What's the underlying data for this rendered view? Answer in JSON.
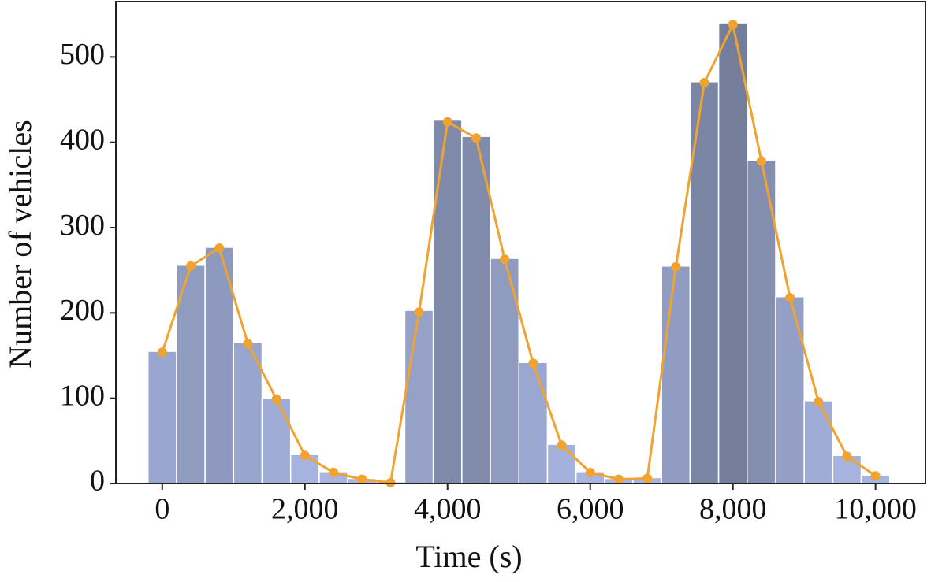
{
  "chart_data": {
    "type": "histogram",
    "x_label": "Time (s)",
    "y_label": "Number of vehicles",
    "bins": [
      -200,
      200,
      600,
      1000,
      1400,
      1800,
      2200,
      2600,
      3000,
      3400,
      3800,
      4200,
      4600,
      5000,
      5400,
      5800,
      6200,
      6600,
      7000,
      7400,
      7800,
      8200,
      8600,
      9000,
      9400,
      9800,
      10200
    ],
    "values": [
      155,
      256,
      277,
      165,
      100,
      34,
      14,
      6,
      2,
      203,
      426,
      407,
      264,
      142,
      46,
      14,
      6,
      7,
      255,
      471,
      540,
      379,
      219,
      97,
      33,
      10
    ],
    "colormap": [
      "#a8b6e2",
      "#747e9b"
    ],
    "line": {
      "color": "#f0a330",
      "x": [
        0,
        400,
        800,
        1200,
        1600,
        2000,
        2400,
        2800,
        3200,
        3600,
        4000,
        4400,
        4800,
        5200,
        5600,
        6000,
        6400,
        6800,
        7200,
        7600,
        8000,
        8400,
        8800,
        9200,
        9600,
        10000
      ],
      "values": [
        154,
        255,
        276,
        164,
        99,
        33,
        13,
        5,
        1,
        201,
        424,
        405,
        263,
        141,
        45,
        13,
        5,
        6,
        254,
        470,
        538,
        378,
        218,
        96,
        32,
        9
      ]
    },
    "xlim": [
      -650,
      10700
    ],
    "ylim": [
      0,
      565
    ],
    "xticks": [
      0,
      {
        "value": 2000,
        "label": "2,000"
      },
      {
        "value": 4000,
        "label": "4,000"
      },
      {
        "value": 6000,
        "label": "6,000"
      },
      {
        "value": 8000,
        "label": "8,000"
      },
      {
        "value": 10000,
        "label": "10,000"
      }
    ],
    "yticks": [
      0,
      100,
      200,
      300,
      400,
      500
    ]
  }
}
